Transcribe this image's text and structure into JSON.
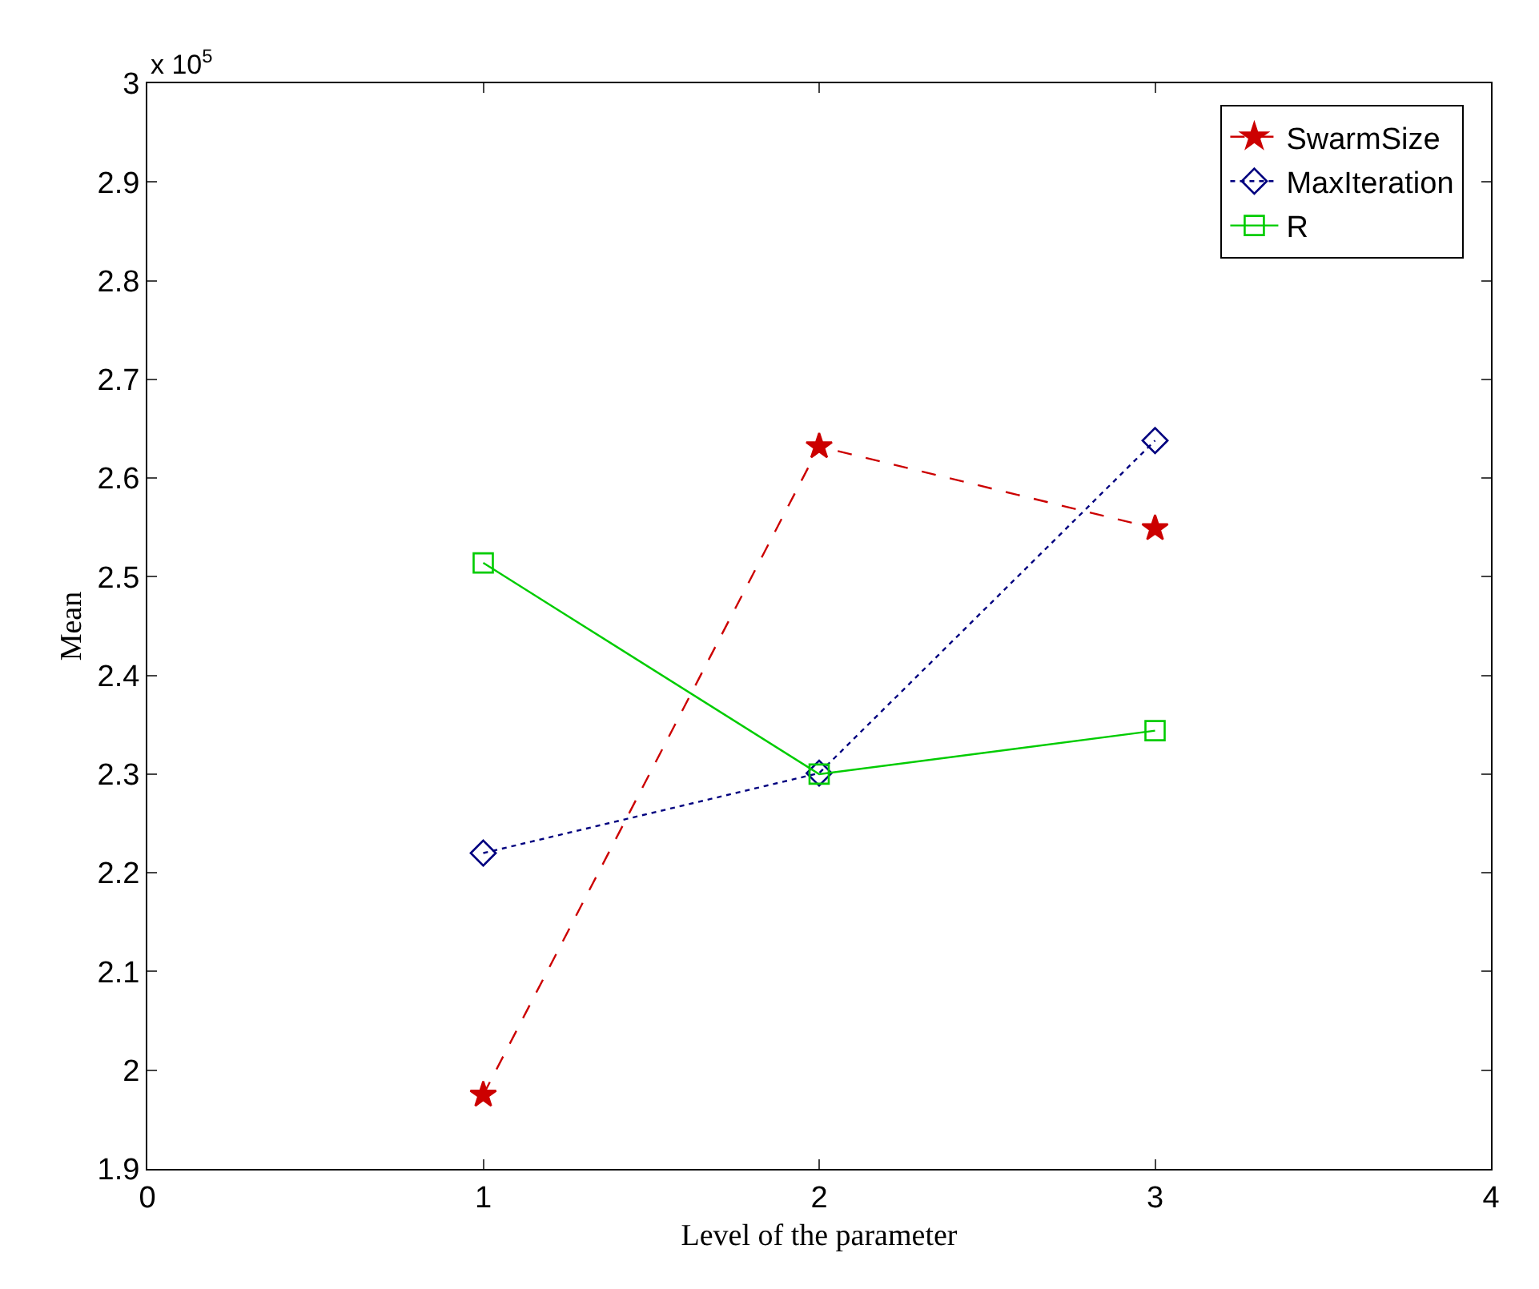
{
  "chart_data": {
    "type": "line",
    "xlabel": "Level of the parameter",
    "ylabel": "Mean",
    "annotations": [
      "x 10$^{5}$"
    ],
    "x": [
      1,
      2,
      3
    ],
    "series": [
      {
        "name": "SwarmSize",
        "color": "#cc0000",
        "values": [
          1.975,
          2.632,
          2.549
        ],
        "marker": "star",
        "line_style": "dashed"
      },
      {
        "name": "MaxIteration",
        "color": "#00007f",
        "values": [
          2.22,
          2.301,
          2.638
        ],
        "marker": "diamond",
        "line_style": "dotted"
      },
      {
        "name": "R",
        "color": "#00cc00",
        "values": [
          2.514,
          2.3,
          2.344
        ],
        "marker": "square",
        "line_style": "solid"
      }
    ],
    "xlim": [
      0,
      4
    ],
    "xticks": [
      0,
      1,
      2,
      3,
      4
    ],
    "ylim": [
      1.9,
      3
    ],
    "yticks": [
      1.9,
      2,
      2.1,
      2.2,
      2.3,
      2.4,
      2.5,
      2.6,
      2.7,
      2.8,
      2.9,
      3
    ],
    "legend": "top right"
  }
}
